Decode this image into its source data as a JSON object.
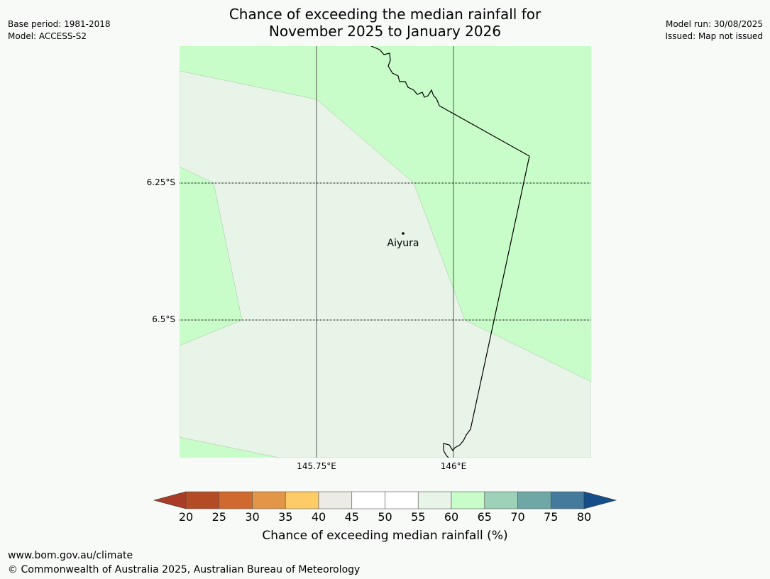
{
  "title": {
    "line1": "Chance of exceeding the median rainfall for",
    "line2": "November 2025 to January 2026"
  },
  "meta_left": {
    "base_period": "Base period: 1981-2018",
    "model": "Model: ACCESS-S2"
  },
  "meta_right": {
    "model_run": "Model run: 30/08/2025",
    "issued": "Issued: Map not issued"
  },
  "map": {
    "lat_labels": [
      "6.25°S",
      "6.5°S"
    ],
    "lon_labels": [
      "145.75°E",
      "146°E"
    ],
    "place": {
      "name": "Aiyura",
      "lat": -6.34,
      "lon": 145.905
    },
    "colors": {
      "band_55_60": "#e8f4e8",
      "band_60_65": "#c8fcc8",
      "coastline": "#000000",
      "gridline": "#555555"
    }
  },
  "colorbar": {
    "ticks": [
      "20",
      "25",
      "30",
      "35",
      "40",
      "45",
      "50",
      "55",
      "60",
      "65",
      "70",
      "75",
      "80"
    ],
    "colors": [
      "#a83c26",
      "#b34c26",
      "#d0692f",
      "#e39548",
      "#fdcc66",
      "#ecebe6",
      "#ffffff",
      "#ffffff",
      "#e8f4e8",
      "#c8fcc8",
      "#9dd1b8",
      "#6fa6a6",
      "#447a9c",
      "#154e8a"
    ],
    "label": "Chance of exceeding median rainfall (%)"
  },
  "footer": {
    "url": "www.bom.gov.au/climate",
    "copyright": "© Commonwealth of Australia 2025, Australian Bureau of Meteorology"
  }
}
